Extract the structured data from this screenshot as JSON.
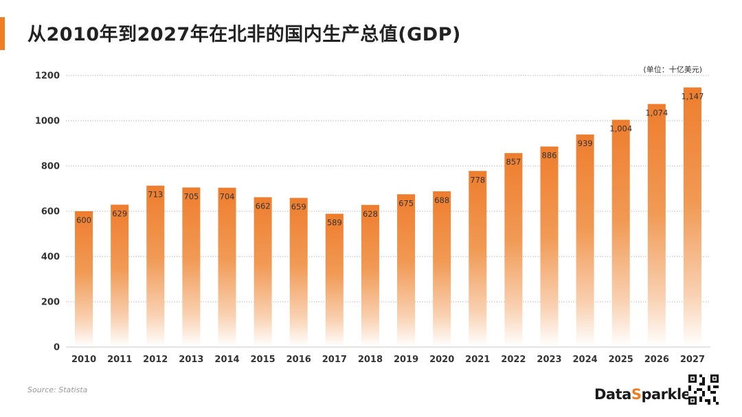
{
  "header": {
    "title": "从2010年到2027年在北非的国内生产总值(GDP)",
    "unit": "(单位：十亿美元)"
  },
  "footer": {
    "source": "Source: Statista",
    "brand_prefix": "Data",
    "brand_accent": "S",
    "brand_suffix": "parkle"
  },
  "colors": {
    "accent": "#f07d22",
    "bar_top": "#ee7d2e",
    "bar_bottom": "#ffffff",
    "grid": "#b8b8b8"
  },
  "chart_data": {
    "type": "bar",
    "categories": [
      "2010",
      "2011",
      "2012",
      "2013",
      "2014",
      "2015",
      "2016",
      "2017",
      "2018",
      "2019",
      "2020",
      "2021",
      "2022",
      "2023",
      "2024",
      "2025",
      "2026",
      "2027"
    ],
    "values": [
      600,
      629,
      713,
      705,
      704,
      662,
      659,
      589,
      628,
      675,
      688,
      778,
      857,
      886,
      939,
      1004,
      1074,
      1147
    ],
    "labels": [
      "600",
      "629",
      "713",
      "705",
      "704",
      "662",
      "659",
      "589",
      "628",
      "675",
      "688",
      "778",
      "857",
      "886",
      "939",
      "1,004",
      "1,074",
      "1,147"
    ],
    "ylim": [
      0,
      1200
    ],
    "yticks": [
      0,
      200,
      400,
      600,
      800,
      1000,
      1200
    ],
    "grid": true
  }
}
